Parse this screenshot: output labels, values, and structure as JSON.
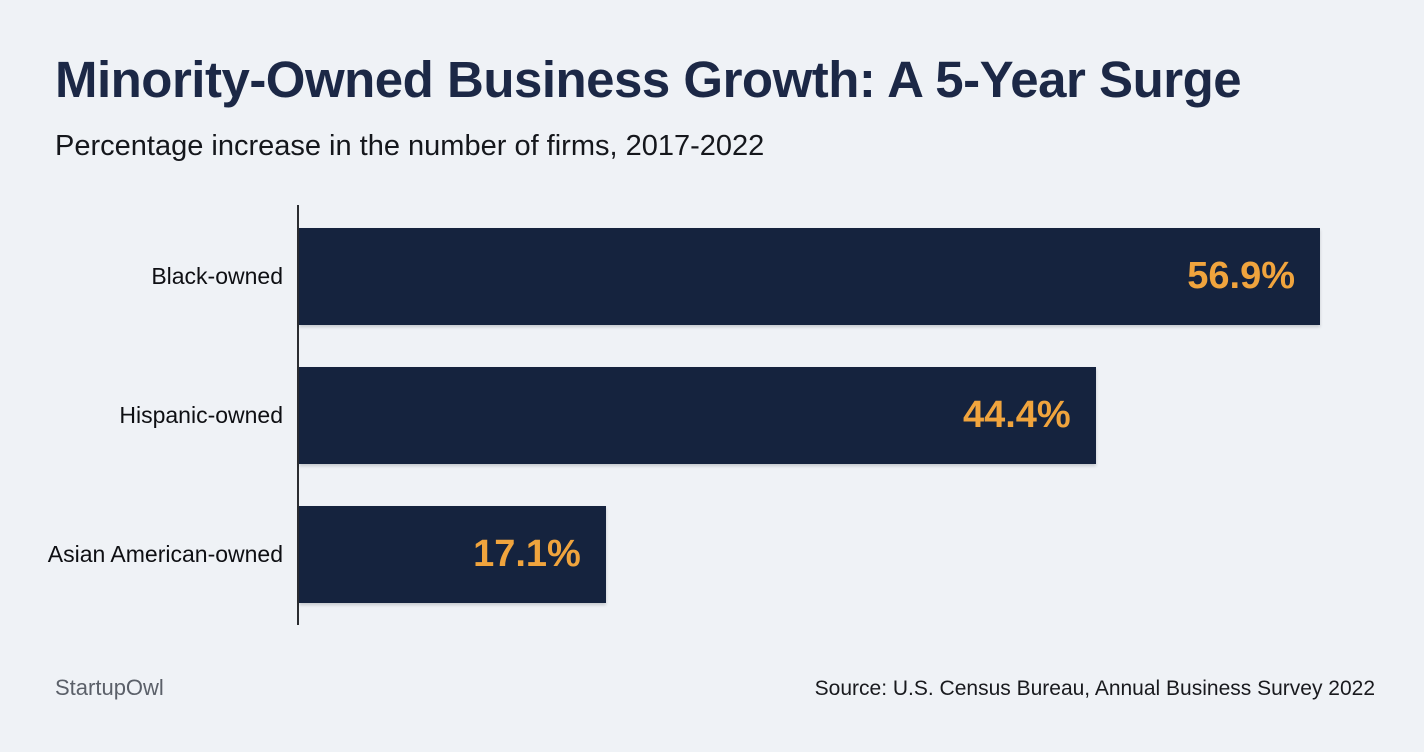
{
  "page": {
    "background": "#EFF2F6"
  },
  "chart_data": {
    "type": "bar",
    "orientation": "horizontal",
    "title": "Minority-Owned Business Growth: A 5-Year Surge",
    "subtitle": "Percentage increase in the number of firms, 2017-2022",
    "categories": [
      "Black-owned",
      "Hispanic-owned",
      "Asian American-owned"
    ],
    "values": [
      56.9,
      44.4,
      17.1
    ],
    "value_labels": [
      "56.9%",
      "44.4%",
      "17.1%"
    ],
    "xlim": [
      0,
      56.9
    ],
    "grid": false,
    "legend": false,
    "bar_color": "#15233E",
    "value_label_color": "#F0A43D",
    "axis_line_color": "#2B2D31",
    "title_color": "#1C2846",
    "subtitle_color": "#15171C"
  },
  "footer": {
    "brand": "StartupOwl",
    "source": "Source: U.S. Census Bureau, Annual Business Survey 2022"
  }
}
